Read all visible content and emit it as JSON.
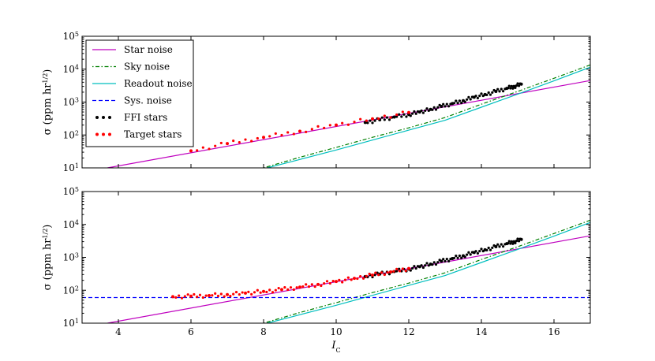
{
  "chart_data": [
    {
      "type": "line",
      "panel": "top",
      "ylabel": "σ (ppm hr^1/2)",
      "ylabel_parts": {
        "main": "σ (ppm hr",
        "sup": "1/2",
        "close": ")"
      },
      "xlim": [
        3,
        17
      ],
      "ylim": [
        10,
        100000
      ],
      "yscale": "log",
      "xticks": [
        4,
        6,
        8,
        10,
        12,
        14,
        16
      ],
      "xtick_labels": [
        "",
        "",
        "",
        "",
        "",
        "",
        ""
      ],
      "yticks": [
        10,
        100,
        1000,
        10000,
        100000
      ],
      "ytick_labels": [
        {
          "base": "10",
          "exp": "1"
        },
        {
          "base": "10",
          "exp": "2"
        },
        {
          "base": "10",
          "exp": "3"
        },
        {
          "base": "10",
          "exp": "4"
        },
        {
          "base": "10",
          "exp": "5"
        }
      ],
      "legend_position": "top-left",
      "legend": [
        {
          "label": "Star noise",
          "style": "solid",
          "color": "#bf00bf"
        },
        {
          "label": "Sky noise",
          "style": "dashdot",
          "color": "#007f00"
        },
        {
          "label": "Readout noise",
          "style": "solid",
          "color": "#00bfbf"
        },
        {
          "label": "Sys. noise",
          "style": "dashed",
          "color": "#0000ff"
        },
        {
          "label": "FFI stars",
          "style": "dots",
          "color": "#000000"
        },
        {
          "label": "Target stars",
          "style": "dots",
          "color": "#ff0000"
        }
      ],
      "series": [
        {
          "name": "Star noise",
          "style": "solid",
          "color": "#bf00bf",
          "x": [
            3.7,
            17
          ],
          "y": [
            10,
            4500
          ]
        },
        {
          "name": "Sky noise",
          "style": "dashdot",
          "color": "#007f00",
          "x": [
            8,
            9,
            10,
            11,
            12,
            13,
            14,
            15,
            16,
            17
          ],
          "y": [
            10,
            21,
            42,
            85,
            165,
            340,
            860,
            2100,
            5300,
            13500
          ]
        },
        {
          "name": "Readout noise",
          "style": "solid",
          "color": "#00bfbf",
          "x": [
            8.1,
            9,
            10,
            11,
            12,
            13,
            14,
            15,
            16,
            17
          ],
          "y": [
            10,
            18,
            35,
            70,
            140,
            280,
            700,
            1750,
            4400,
            11500
          ]
        },
        {
          "name": "FFI stars",
          "style": "dots",
          "color": "#000000",
          "x": [
            10.8,
            11.2,
            11.6,
            12.0,
            12.3,
            12.6,
            12.9,
            13.2,
            13.5,
            13.8,
            14.1,
            14.4,
            14.7,
            14.9,
            15.1
          ],
          "y": [
            240,
            290,
            350,
            420,
            500,
            600,
            740,
            900,
            1100,
            1400,
            1700,
            2100,
            2600,
            3000,
            3500
          ]
        },
        {
          "name": "Target stars",
          "style": "dots",
          "color": "#ff0000",
          "x": [
            6.0,
            7.0,
            8.0,
            9.0,
            10.0,
            11.0,
            12.0
          ],
          "y": [
            33,
            55,
            85,
            130,
            200,
            310,
            480
          ]
        }
      ]
    },
    {
      "type": "line",
      "panel": "bottom",
      "ylabel": "σ (ppm hr^1/2)",
      "ylabel_parts": {
        "main": "σ (ppm hr",
        "sup": "1/2",
        "close": ")"
      },
      "xlabel_parts": {
        "main": "I",
        "sub": "C"
      },
      "xlim": [
        3,
        17
      ],
      "ylim": [
        10,
        100000
      ],
      "yscale": "log",
      "xticks": [
        4,
        6,
        8,
        10,
        12,
        14,
        16
      ],
      "xtick_labels": [
        "4",
        "6",
        "8",
        "10",
        "12",
        "14",
        "16"
      ],
      "yticks": [
        10,
        100,
        1000,
        10000,
        100000
      ],
      "ytick_labels": [
        {
          "base": "10",
          "exp": "1"
        },
        {
          "base": "10",
          "exp": "2"
        },
        {
          "base": "10",
          "exp": "3"
        },
        {
          "base": "10",
          "exp": "4"
        },
        {
          "base": "10",
          "exp": "5"
        }
      ],
      "series": [
        {
          "name": "Star noise",
          "style": "solid",
          "color": "#bf00bf",
          "x": [
            3.7,
            17
          ],
          "y": [
            10,
            4500
          ]
        },
        {
          "name": "Sky noise",
          "style": "dashdot",
          "color": "#007f00",
          "x": [
            8,
            9,
            10,
            11,
            12,
            13,
            14,
            15,
            16,
            17
          ],
          "y": [
            10,
            21,
            42,
            85,
            165,
            340,
            860,
            2100,
            5300,
            13500
          ]
        },
        {
          "name": "Readout noise",
          "style": "solid",
          "color": "#00bfbf",
          "x": [
            8.1,
            9,
            10,
            11,
            12,
            13,
            14,
            15,
            16,
            17
          ],
          "y": [
            10,
            18,
            35,
            70,
            140,
            280,
            700,
            1750,
            4400,
            11500
          ]
        },
        {
          "name": "Sys. noise",
          "style": "dashed",
          "color": "#0000ff",
          "x": [
            3,
            17
          ],
          "y": [
            60,
            60
          ]
        },
        {
          "name": "FFI stars",
          "style": "dots",
          "color": "#000000",
          "x": [
            10.8,
            11.2,
            11.6,
            12.0,
            12.3,
            12.6,
            12.9,
            13.2,
            13.5,
            13.8,
            14.1,
            14.4,
            14.7,
            14.9,
            15.1
          ],
          "y": [
            260,
            310,
            370,
            440,
            520,
            620,
            760,
            920,
            1120,
            1400,
            1700,
            2100,
            2600,
            3000,
            3500
          ]
        },
        {
          "name": "Target stars",
          "style": "dots",
          "color": "#ff0000",
          "x": [
            5.5,
            6.0,
            6.5,
            7.0,
            7.5,
            8.0,
            8.5,
            9.0,
            9.5,
            10.0,
            10.5,
            11.0,
            11.5,
            12.0
          ],
          "y": [
            64,
            66,
            69,
            74,
            82,
            92,
            105,
            125,
            150,
            185,
            230,
            290,
            360,
            460
          ]
        }
      ]
    }
  ]
}
